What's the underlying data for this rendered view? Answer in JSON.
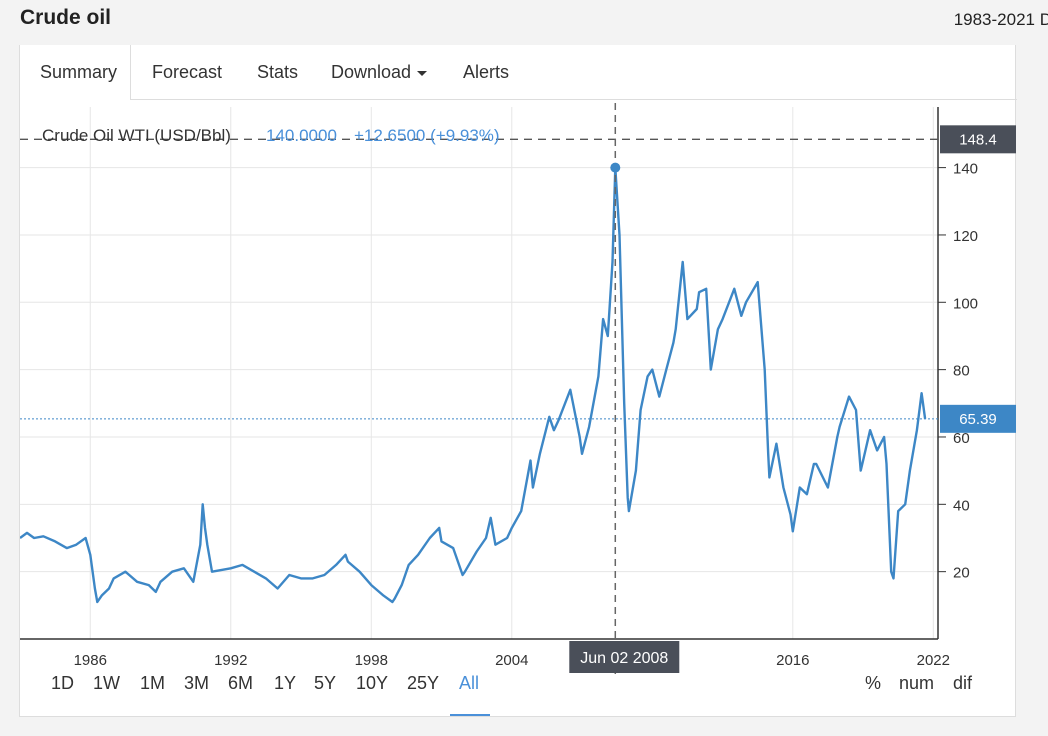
{
  "header": {
    "title": "Crude oil",
    "range": "1983-2021 D"
  },
  "tabs": [
    {
      "label": "Summary",
      "active": true
    },
    {
      "label": "Forecast"
    },
    {
      "label": "Stats"
    },
    {
      "label": "Download",
      "dropdown": true
    },
    {
      "label": "Alerts"
    }
  ],
  "legend": {
    "series": "Crude Oil WTI (USD/Bbl)",
    "value": "140.0000",
    "change": "+12.6500 (+9.93%)"
  },
  "crosshair": {
    "date": "Jun 02 2008",
    "max_label": "148.4",
    "current_label": "65.39"
  },
  "ranges": [
    "1D",
    "1W",
    "1M",
    "3M",
    "6M",
    "1Y",
    "5Y",
    "10Y",
    "25Y",
    "All"
  ],
  "active_range": "All",
  "modes": [
    "%",
    "num",
    "dif"
  ],
  "colors": {
    "line": "#3d87c6",
    "dark_label": "#4a4f59",
    "active": "#4a90d9"
  },
  "chart_data": {
    "type": "line",
    "series": [
      {
        "name": "Crude Oil WTI (USD/Bbl)",
        "points": [
          [
            1983.0,
            30
          ],
          [
            1983.3,
            31.5
          ],
          [
            1983.6,
            30
          ],
          [
            1984.0,
            30.5
          ],
          [
            1984.5,
            29
          ],
          [
            1985.0,
            27
          ],
          [
            1985.4,
            28
          ],
          [
            1985.8,
            30
          ],
          [
            1986.0,
            25
          ],
          [
            1986.2,
            15
          ],
          [
            1986.3,
            11
          ],
          [
            1986.5,
            13
          ],
          [
            1986.8,
            15
          ],
          [
            1987.0,
            18
          ],
          [
            1987.5,
            20
          ],
          [
            1988.0,
            17
          ],
          [
            1988.5,
            16
          ],
          [
            1988.8,
            14
          ],
          [
            1989.0,
            17
          ],
          [
            1989.5,
            20
          ],
          [
            1990.0,
            21
          ],
          [
            1990.4,
            17
          ],
          [
            1990.7,
            28
          ],
          [
            1990.8,
            40
          ],
          [
            1990.9,
            33
          ],
          [
            1991.0,
            28
          ],
          [
            1991.2,
            20
          ],
          [
            1992.0,
            21
          ],
          [
            1992.5,
            22
          ],
          [
            1993.0,
            20
          ],
          [
            1993.5,
            18
          ],
          [
            1994.0,
            15
          ],
          [
            1994.5,
            19
          ],
          [
            1995.0,
            18
          ],
          [
            1995.5,
            18
          ],
          [
            1996.0,
            19
          ],
          [
            1996.5,
            22
          ],
          [
            1996.9,
            25
          ],
          [
            1997.0,
            23
          ],
          [
            1997.5,
            20
          ],
          [
            1998.0,
            16
          ],
          [
            1998.5,
            13
          ],
          [
            1998.9,
            11
          ],
          [
            1999.0,
            12
          ],
          [
            1999.3,
            16
          ],
          [
            1999.6,
            22
          ],
          [
            2000.0,
            25
          ],
          [
            2000.5,
            30
          ],
          [
            2000.9,
            33
          ],
          [
            2001.0,
            29
          ],
          [
            2001.5,
            27
          ],
          [
            2001.9,
            19
          ],
          [
            2002.0,
            20
          ],
          [
            2002.5,
            26
          ],
          [
            2002.9,
            30
          ],
          [
            2003.1,
            36
          ],
          [
            2003.3,
            28
          ],
          [
            2003.8,
            30
          ],
          [
            2004.0,
            33
          ],
          [
            2004.4,
            38
          ],
          [
            2004.8,
            53
          ],
          [
            2004.9,
            45
          ],
          [
            2005.2,
            55
          ],
          [
            2005.6,
            66
          ],
          [
            2005.8,
            62
          ],
          [
            2006.0,
            65
          ],
          [
            2006.5,
            74
          ],
          [
            2006.9,
            60
          ],
          [
            2007.0,
            55
          ],
          [
            2007.3,
            63
          ],
          [
            2007.7,
            78
          ],
          [
            2007.9,
            95
          ],
          [
            2008.1,
            90
          ],
          [
            2008.3,
            112
          ],
          [
            2008.42,
            140
          ],
          [
            2008.6,
            120
          ],
          [
            2008.8,
            70
          ],
          [
            2008.95,
            42
          ],
          [
            2009.0,
            38
          ],
          [
            2009.3,
            50
          ],
          [
            2009.5,
            68
          ],
          [
            2009.8,
            78
          ],
          [
            2010.0,
            80
          ],
          [
            2010.3,
            72
          ],
          [
            2010.6,
            80
          ],
          [
            2010.9,
            88
          ],
          [
            2011.0,
            92
          ],
          [
            2011.3,
            112
          ],
          [
            2011.5,
            95
          ],
          [
            2011.9,
            98
          ],
          [
            2012.0,
            103
          ],
          [
            2012.3,
            104
          ],
          [
            2012.5,
            80
          ],
          [
            2012.8,
            92
          ],
          [
            2013.0,
            95
          ],
          [
            2013.5,
            104
          ],
          [
            2013.8,
            96
          ],
          [
            2014.0,
            100
          ],
          [
            2014.5,
            106
          ],
          [
            2014.8,
            80
          ],
          [
            2014.95,
            55
          ],
          [
            2015.0,
            48
          ],
          [
            2015.3,
            58
          ],
          [
            2015.6,
            45
          ],
          [
            2015.9,
            37
          ],
          [
            2016.0,
            32
          ],
          [
            2016.3,
            45
          ],
          [
            2016.6,
            43
          ],
          [
            2016.9,
            52
          ],
          [
            2017.0,
            52
          ],
          [
            2017.5,
            45
          ],
          [
            2017.9,
            60
          ],
          [
            2018.0,
            63
          ],
          [
            2018.4,
            72
          ],
          [
            2018.7,
            68
          ],
          [
            2018.9,
            50
          ],
          [
            2019.0,
            53
          ],
          [
            2019.3,
            62
          ],
          [
            2019.6,
            56
          ],
          [
            2019.9,
            60
          ],
          [
            2020.0,
            52
          ],
          [
            2020.2,
            20
          ],
          [
            2020.3,
            18
          ],
          [
            2020.5,
            38
          ],
          [
            2020.8,
            40
          ],
          [
            2021.0,
            50
          ],
          [
            2021.3,
            62
          ],
          [
            2021.5,
            73
          ],
          [
            2021.65,
            65.39
          ]
        ]
      }
    ],
    "xlim": [
      1983,
      2022.2
    ],
    "ylim": [
      0,
      158
    ],
    "xticks": [
      "1986",
      "1992",
      "1998",
      "2004",
      "2016",
      "2022"
    ],
    "yticks": [
      "20",
      "40",
      "60",
      "80",
      "100",
      "120",
      "140"
    ],
    "highlight_point": [
      2008.42,
      140
    ],
    "max_line": 148.4,
    "current_line": 65.39,
    "grid": true
  }
}
